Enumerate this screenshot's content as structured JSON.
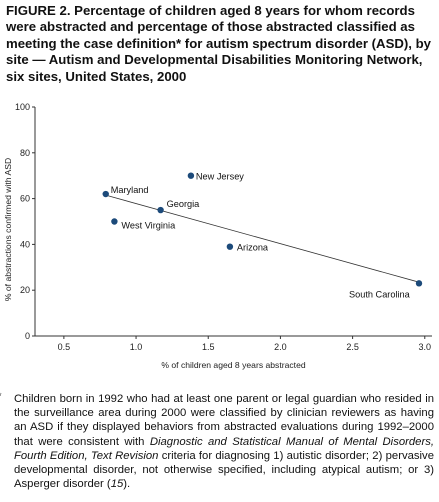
{
  "figure": {
    "title": "FIGURE 2. Percentage of children aged 8 years for whom records were abstracted and percentage of those abstracted classified as meeting the case definition* for autism spectrum disorder (ASD), by site — Autism and Developmental Disabilities Monitoring Network, six sites, United States, 2000"
  },
  "chart_data": {
    "type": "scatter",
    "title": "",
    "xlabel": "% of children aged 8 years abstracted",
    "ylabel": "% of abstractions confirmed with ASD",
    "xlim": [
      0.3,
      3.05
    ],
    "ylim": [
      0,
      100
    ],
    "x_ticks": [
      "0.5",
      "1.0",
      "1.5",
      "2.0",
      "2.5",
      "3.0"
    ],
    "y_ticks": [
      "0",
      "20",
      "40",
      "60",
      "80",
      "100"
    ],
    "grid": false,
    "points": [
      {
        "label": "Maryland",
        "x": 0.79,
        "y": 62
      },
      {
        "label": "New Jersey",
        "x": 1.38,
        "y": 70
      },
      {
        "label": "Georgia",
        "x": 1.17,
        "y": 55
      },
      {
        "label": "West Virginia",
        "x": 0.85,
        "y": 50
      },
      {
        "label": "Arizona",
        "x": 1.65,
        "y": 39
      },
      {
        "label": "South Carolina",
        "x": 2.96,
        "y": 23
      }
    ],
    "trendline": {
      "x": [
        0.79,
        2.96
      ],
      "y": [
        61.5,
        23.5
      ]
    },
    "colors": {
      "point": "#1c4a7a",
      "line": "#333333",
      "axis": "#333333"
    }
  },
  "footnote": {
    "mark": "*",
    "p1": "Children born in 1992 who had at least one parent or legal guardian who resided in the surveillance area during 2000 were classified by clinician reviewers as having an ASD if they displayed behaviors from abstracted evaluations during 1992–2000 that were consistent with ",
    "p2_italic": "Diagnostic and Statistical Manual of Mental Disorders, Fourth Edition, Text Revision",
    "p3": " criteria for diagnosing 1) autistic disorder; 2) pervasive developmental disorder, not otherwise specified, including atypical autism; or 3) Asperger disorder (",
    "ref": "15",
    "p4": ")."
  }
}
